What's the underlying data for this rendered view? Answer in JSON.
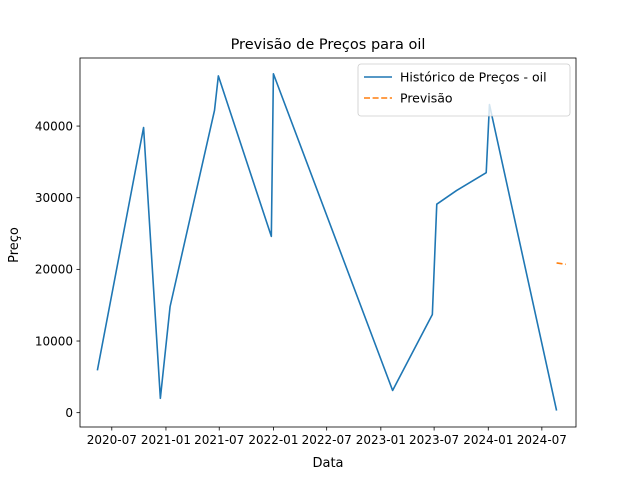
{
  "chart_data": {
    "type": "line",
    "title": "Previsão de Preços para oil",
    "xlabel": "Data",
    "ylabel": "Preço",
    "x_type": "date",
    "xlim": [
      "2020-03-15",
      "2024-10-25"
    ],
    "ylim": [
      -2000,
      49500
    ],
    "x_ticks": [
      {
        "value": "2020-07-01",
        "label": "2020-07"
      },
      {
        "value": "2021-01-01",
        "label": "2021-01"
      },
      {
        "value": "2021-07-01",
        "label": "2021-07"
      },
      {
        "value": "2022-01-01",
        "label": "2022-01"
      },
      {
        "value": "2022-07-01",
        "label": "2022-07"
      },
      {
        "value": "2023-01-01",
        "label": "2023-01"
      },
      {
        "value": "2023-07-01",
        "label": "2023-07"
      },
      {
        "value": "2024-01-01",
        "label": "2024-01"
      },
      {
        "value": "2024-07-01",
        "label": "2024-07"
      }
    ],
    "y_ticks": [
      0,
      10000,
      20000,
      30000,
      40000
    ],
    "grid": false,
    "legend_position": "top-right",
    "series": [
      {
        "name": "Histórico de Preços - oil",
        "color": "#1f77b4",
        "style": "solid",
        "points": [
          {
            "x": "2020-05-13",
            "y": 5900
          },
          {
            "x": "2020-10-17",
            "y": 39800
          },
          {
            "x": "2020-12-13",
            "y": 2000
          },
          {
            "x": "2021-01-15",
            "y": 14800
          },
          {
            "x": "2021-06-15",
            "y": 42200
          },
          {
            "x": "2021-06-28",
            "y": 47000
          },
          {
            "x": "2021-12-25",
            "y": 24600
          },
          {
            "x": "2022-01-01",
            "y": 47300
          },
          {
            "x": "2023-02-10",
            "y": 3100
          },
          {
            "x": "2023-06-25",
            "y": 13700
          },
          {
            "x": "2023-07-10",
            "y": 29100
          },
          {
            "x": "2023-09-15",
            "y": 31000
          },
          {
            "x": "2023-12-25",
            "y": 33500
          },
          {
            "x": "2024-01-05",
            "y": 43000
          },
          {
            "x": "2024-08-20",
            "y": 300
          }
        ]
      },
      {
        "name": "Previsão",
        "color": "#ff7f0e",
        "style": "dashed",
        "points": [
          {
            "x": "2024-08-20",
            "y": 20900
          },
          {
            "x": "2024-09-20",
            "y": 20700
          }
        ]
      }
    ]
  }
}
